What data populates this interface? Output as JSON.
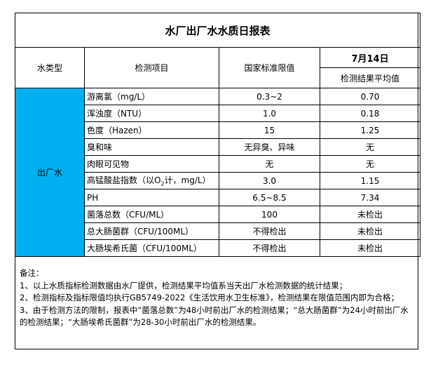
{
  "title": "水厂出厂水水质日报表",
  "headers": {
    "water_type": "水类型",
    "item": "检测项目",
    "standard": "国家标准限值",
    "date": "7月14日",
    "result": "检测结果平均值"
  },
  "water_type_value": "出厂水",
  "colors": {
    "type_cell_bg": "#00b0f0"
  },
  "rows": [
    {
      "item": "游离氯（mg/L）",
      "standard": "0.3~2",
      "result": "0.70"
    },
    {
      "item": "浑浊度（NTU）",
      "standard": "1.0",
      "result": "0.18"
    },
    {
      "item": "色度（Hazen）",
      "standard": "15",
      "result": "1.25"
    },
    {
      "item": "臭和味",
      "standard": "无异臭、异味",
      "result": "无"
    },
    {
      "item": "肉眼可见物",
      "standard": "无",
      "result": "无"
    },
    {
      "item_prefix": "高锰酸盐指数（以O",
      "item_sub": "2",
      "item_suffix": "计，mg/L）",
      "standard": "3.0",
      "result": "1.15"
    },
    {
      "item": "PH",
      "standard": "6.5~8.5",
      "result": "7.34"
    },
    {
      "item": "菌落总数（CFU/ML）",
      "standard": "100",
      "result": "未检出"
    },
    {
      "item": "总大肠菌群（CFU/100ML）",
      "standard": "不得检出",
      "result": "未检出"
    },
    {
      "item": "大肠埃希氏菌（CFU/100ML）",
      "standard": "不得检出",
      "result": "未检出"
    }
  ],
  "notes": [
    "备注：",
    "1、以上水质指标检测数据由水厂提供，检测结果平均值系当天出厂水检测数据的统计结果；",
    "2、检测指标及指标限值均执行GB5749-2022《生活饮用水卫生标准》，检测结果在限值范围内即为合格；",
    "3、由于检测方法的限制，报表中“菌落总数”为48小时前出厂水的检测结果；“总大肠菌群”为24小时前出厂水的检测结果；“大肠埃希氏菌群”为28-30小时前出厂水的检测结果。"
  ]
}
